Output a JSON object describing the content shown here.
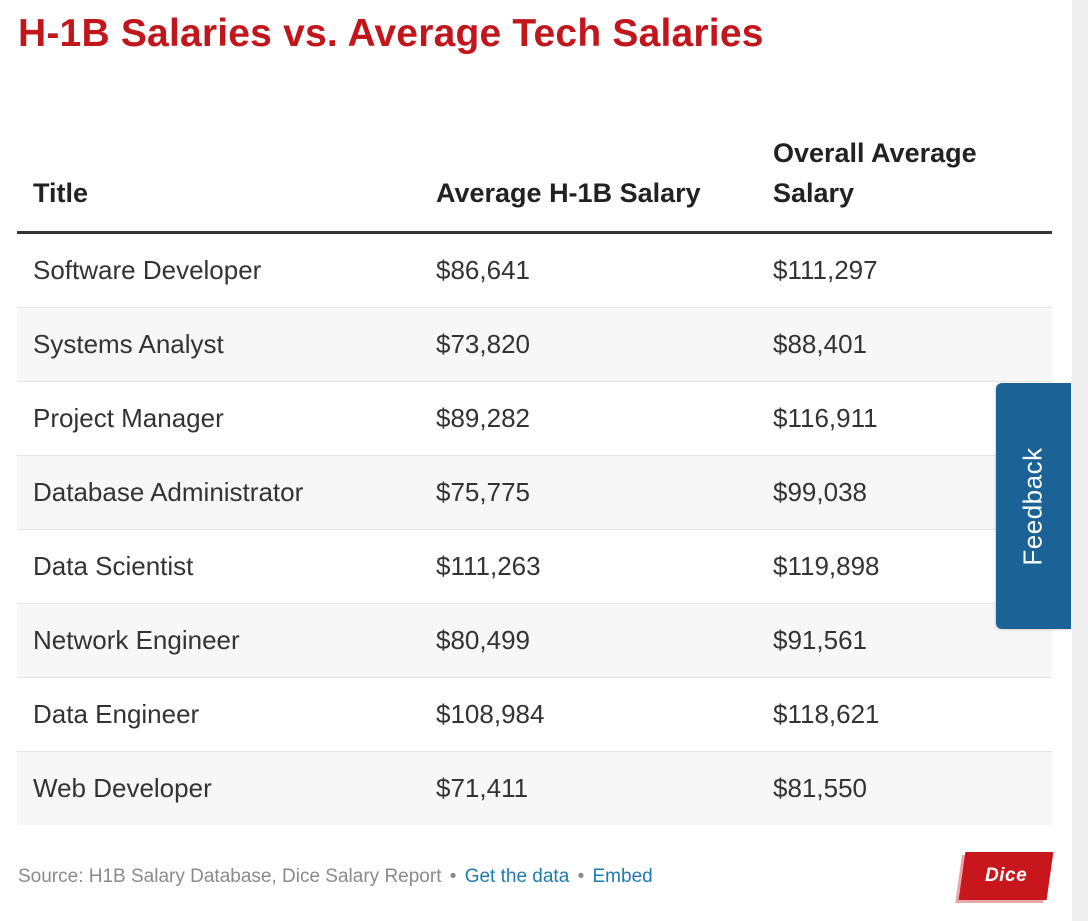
{
  "title": "H-1B Salaries vs. Average Tech Salaries",
  "chart_data": {
    "type": "table",
    "title": "H-1B Salaries vs. Average Tech Salaries",
    "columns": [
      "Title",
      "Average H-1B Salary",
      "Overall Average Salary"
    ],
    "rows": [
      [
        "Software Developer",
        "$86,641",
        "$111,297"
      ],
      [
        "Systems Analyst",
        "$73,820",
        "$88,401"
      ],
      [
        "Project Manager",
        "$89,282",
        "$116,911"
      ],
      [
        "Database Administrator",
        "$75,775",
        "$99,038"
      ],
      [
        "Data Scientist",
        "$111,263",
        "$119,898"
      ],
      [
        "Network Engineer",
        "$80,499",
        "$91,561"
      ],
      [
        "Data Engineer",
        "$108,984",
        "$118,621"
      ],
      [
        "Web Developer",
        "$71,411",
        "$81,550"
      ]
    ]
  },
  "footer": {
    "source": "Source: H1B Salary Database, Dice Salary Report",
    "separator": "•",
    "get_data_link": "Get the data",
    "embed_link": "Embed"
  },
  "logo": {
    "text": "Dice"
  },
  "feedback": {
    "label": "Feedback"
  },
  "colors": {
    "title": "#c0161c",
    "link": "#1f7ab0",
    "feedback_tab": "#1b6296",
    "logo": "#c8161d"
  }
}
